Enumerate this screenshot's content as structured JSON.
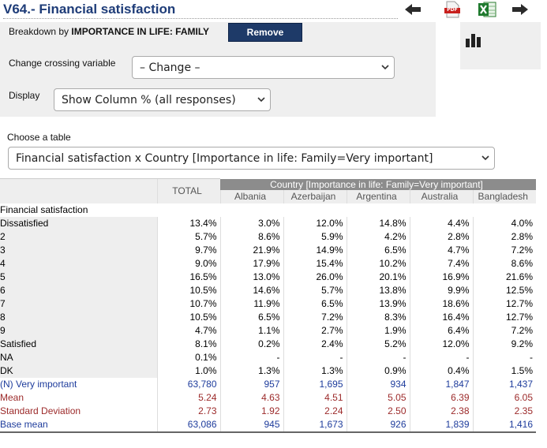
{
  "title": "V64.- Financial satisfaction",
  "toolbar": {
    "back_icon": "arrow-left-icon",
    "pdf_icon": "pdf-icon",
    "pdf_label": "PDF",
    "excel_icon": "excel-icon",
    "forward_icon": "arrow-right-icon",
    "chart_icon": "bar-chart-icon"
  },
  "controls": {
    "breakdown_prefix": "Breakdown by ",
    "breakdown_value": "IMPORTANCE IN LIFE: FAMILY",
    "remove_label": "Remove",
    "crossing_label": "Change crossing variable",
    "crossing_value": "– Change –",
    "display_label": "Display",
    "display_value": "Show Column % (all responses)",
    "table_label": "Choose a table",
    "table_value": "Financial satisfaction x Country [Importance in life: Family=Very important]"
  },
  "table": {
    "group_header": "Country [Importance in life: Family=Very important]",
    "total_header": "TOTAL",
    "columns": [
      "Albania",
      "Azerbaijan",
      "Argentina",
      "Australia",
      "Bangladesh"
    ],
    "section_label": "Financial satisfaction",
    "rows": [
      {
        "label": "Dissatisfied",
        "total": "13.4%",
        "values": [
          "3.0%",
          "12.0%",
          "14.8%",
          "4.4%",
          "4.0%"
        ]
      },
      {
        "label": "2",
        "total": "5.7%",
        "values": [
          "8.6%",
          "5.9%",
          "4.2%",
          "2.8%",
          "2.8%"
        ]
      },
      {
        "label": "3",
        "total": "9.7%",
        "values": [
          "21.9%",
          "14.9%",
          "6.5%",
          "4.7%",
          "7.2%"
        ]
      },
      {
        "label": "4",
        "total": "9.0%",
        "values": [
          "17.9%",
          "15.4%",
          "10.2%",
          "7.4%",
          "8.6%"
        ]
      },
      {
        "label": "5",
        "total": "16.5%",
        "values": [
          "13.0%",
          "26.0%",
          "20.1%",
          "16.9%",
          "21.6%"
        ]
      },
      {
        "label": "6",
        "total": "10.5%",
        "values": [
          "14.6%",
          "5.7%",
          "13.8%",
          "9.9%",
          "12.5%"
        ]
      },
      {
        "label": "7",
        "total": "10.7%",
        "values": [
          "11.9%",
          "6.5%",
          "13.9%",
          "18.6%",
          "12.7%"
        ]
      },
      {
        "label": "8",
        "total": "10.5%",
        "values": [
          "6.5%",
          "7.2%",
          "8.3%",
          "16.4%",
          "12.7%"
        ]
      },
      {
        "label": "9",
        "total": "4.7%",
        "values": [
          "1.1%",
          "2.7%",
          "1.9%",
          "6.4%",
          "7.2%"
        ]
      },
      {
        "label": "Satisfied",
        "total": "8.1%",
        "values": [
          "0.2%",
          "2.4%",
          "5.2%",
          "12.0%",
          "9.2%"
        ]
      },
      {
        "label": "NA",
        "total": "0.1%",
        "values": [
          "-",
          "-",
          "-",
          "-",
          "-"
        ]
      },
      {
        "label": "DK",
        "total": "1.0%",
        "values": [
          "1.3%",
          "1.3%",
          "0.9%",
          "0.4%",
          "1.5%"
        ]
      }
    ],
    "summary_rows": [
      {
        "label": "(N) Very important",
        "total": "63,780",
        "values": [
          "957",
          "1,695",
          "934",
          "1,847",
          "1,437"
        ],
        "color": "blue"
      },
      {
        "label": "Mean",
        "total": "5.24",
        "values": [
          "4.63",
          "4.51",
          "5.05",
          "6.39",
          "6.05"
        ],
        "color": "red"
      },
      {
        "label": "Standard Deviation",
        "total": "2.73",
        "values": [
          "1.92",
          "2.24",
          "2.50",
          "2.38",
          "2.35"
        ],
        "color": "red"
      },
      {
        "label": "Base mean",
        "total": "63,086",
        "values": [
          "945",
          "1,673",
          "926",
          "1,839",
          "1,416"
        ],
        "color": "blue"
      }
    ]
  }
}
